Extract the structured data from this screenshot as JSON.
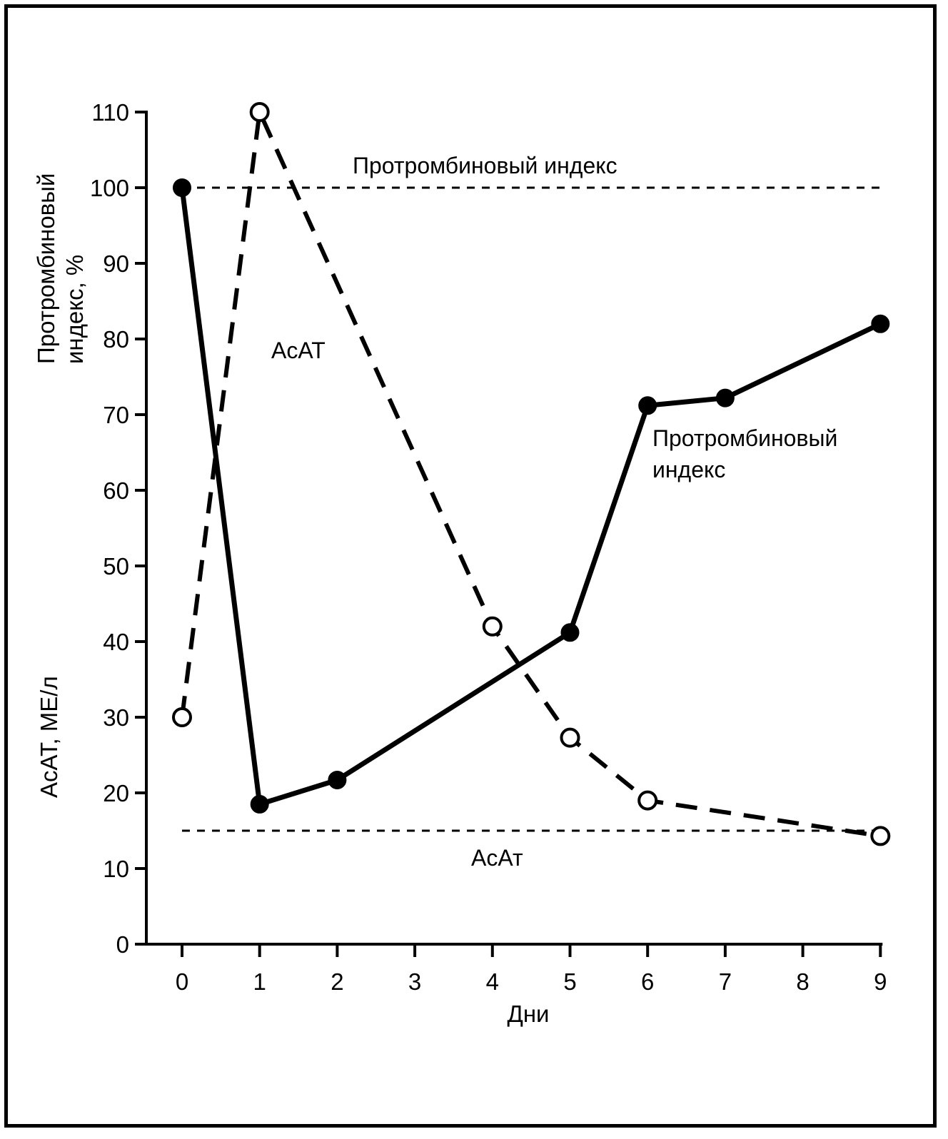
{
  "chart_data": {
    "type": "line",
    "x": [
      0,
      1,
      2,
      4,
      5,
      6,
      7,
      9
    ],
    "xlabel": "Дни",
    "ylabel_top": "Протромбиновый индекс, %",
    "ylabel_bottom": "АсАТ, МЕ/л",
    "xlim": [
      0,
      9
    ],
    "ylim": [
      0,
      110
    ],
    "x_ticks": [
      "0",
      "1",
      "2",
      "3",
      "4",
      "5",
      "6",
      "7",
      "8",
      "9"
    ],
    "y_ticks": [
      "0",
      "10",
      "20",
      "30",
      "40",
      "50",
      "60",
      "70",
      "80",
      "90",
      "100",
      "110"
    ],
    "grid": false,
    "series": [
      {
        "name": "Протромбиновый индекс",
        "style": "solid",
        "marker": "filled-circle",
        "points": [
          [
            0,
            100
          ],
          [
            1,
            18.5
          ],
          [
            2,
            21.7
          ],
          [
            5,
            41.2
          ],
          [
            6,
            71.2
          ],
          [
            7,
            72.2
          ],
          [
            9,
            82
          ]
        ]
      },
      {
        "name": "АсАТ",
        "style": "dashed",
        "marker": "open-circle",
        "points": [
          [
            0,
            30
          ],
          [
            1,
            110
          ],
          [
            4,
            42
          ],
          [
            5,
            27.3
          ],
          [
            6,
            19
          ],
          [
            9,
            14.3
          ]
        ]
      }
    ],
    "reference_lines": [
      {
        "y": 100,
        "label": "Протромбиновый индекс"
      },
      {
        "y": 15,
        "label": "АсАт"
      }
    ],
    "annotations": {
      "asat_series_label": "АсАТ",
      "pti_series_label_line1": "Протромбиновый",
      "pti_series_label_line2": "индекс",
      "ref_top_label": "Протромбиновый индекс",
      "ref_bottom_label": "АсАт"
    },
    "ylabel_top_line1": "Протромбиновый",
    "ylabel_top_line2": "индекс, %"
  }
}
